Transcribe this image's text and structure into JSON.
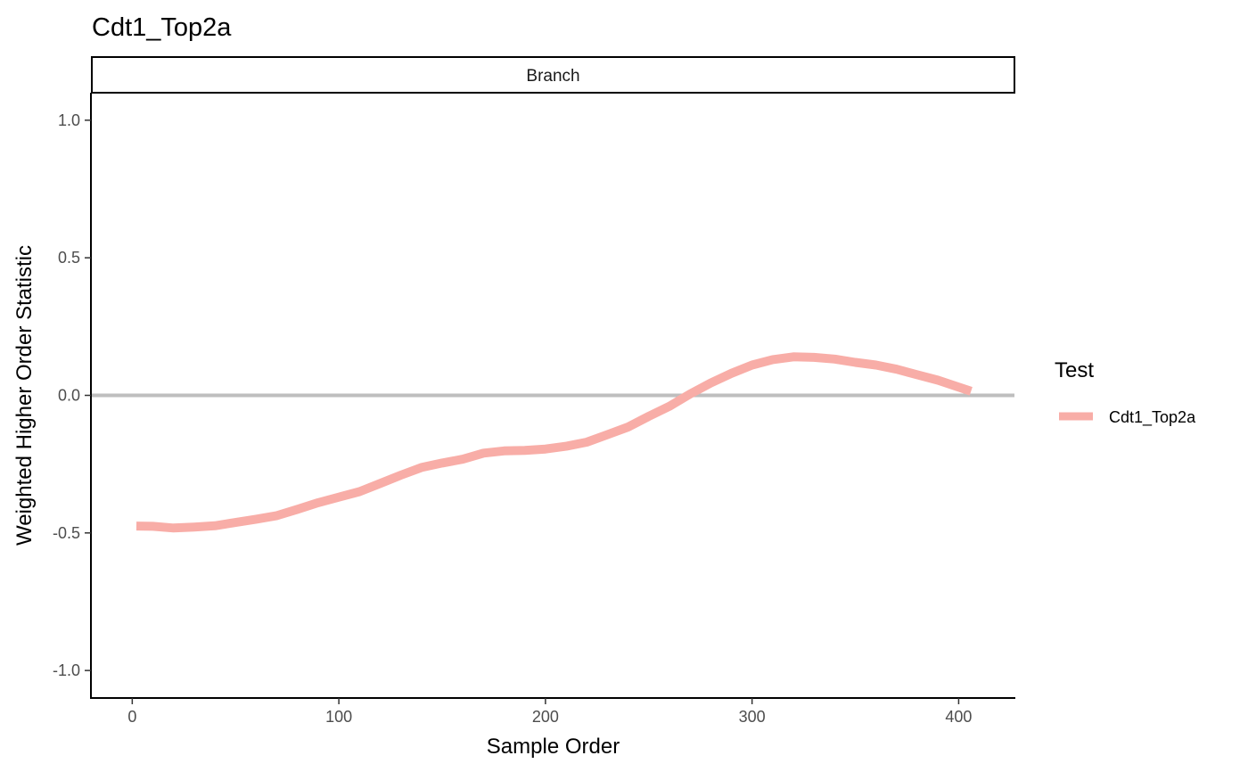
{
  "chart_data": {
    "type": "line",
    "title": "Cdt1_Top2a",
    "facet_label": "Branch",
    "xlabel": "Sample Order",
    "ylabel": "Weighted Higher Order Statistic",
    "xlim": [
      -20,
      427
    ],
    "ylim": [
      -1.1,
      1.1
    ],
    "x_ticks": [
      0,
      100,
      200,
      300,
      400
    ],
    "x_tick_labels": [
      "0",
      "100",
      "200",
      "300",
      "400"
    ],
    "y_ticks": [
      1.0,
      0.5,
      0.0,
      -0.5,
      -1.0
    ],
    "y_tick_labels": [
      "1.0",
      "0.5",
      "0.0",
      "-0.5",
      "-1.0"
    ],
    "reference_line": {
      "y": 0,
      "color": "#bebebe"
    },
    "legend": {
      "title": "Test",
      "position": "right"
    },
    "grid": false,
    "series": [
      {
        "name": "Cdt1_Top2a",
        "color": "#f8ada7",
        "x": [
          2,
          10,
          20,
          30,
          40,
          50,
          60,
          70,
          80,
          90,
          100,
          110,
          120,
          130,
          140,
          150,
          160,
          170,
          180,
          190,
          200,
          210,
          220,
          230,
          240,
          250,
          260,
          270,
          280,
          290,
          300,
          310,
          320,
          330,
          340,
          350,
          360,
          370,
          380,
          390,
          400,
          406
        ],
        "y": [
          -0.475,
          -0.476,
          -0.482,
          -0.479,
          -0.474,
          -0.462,
          -0.45,
          -0.437,
          -0.414,
          -0.39,
          -0.37,
          -0.35,
          -0.32,
          -0.29,
          -0.262,
          -0.246,
          -0.232,
          -0.21,
          -0.202,
          -0.2,
          -0.195,
          -0.185,
          -0.17,
          -0.143,
          -0.115,
          -0.076,
          -0.04,
          0.005,
          0.045,
          0.08,
          0.11,
          0.13,
          0.14,
          0.138,
          0.132,
          0.12,
          0.11,
          0.095,
          0.075,
          0.055,
          0.03,
          0.015
        ]
      }
    ]
  }
}
